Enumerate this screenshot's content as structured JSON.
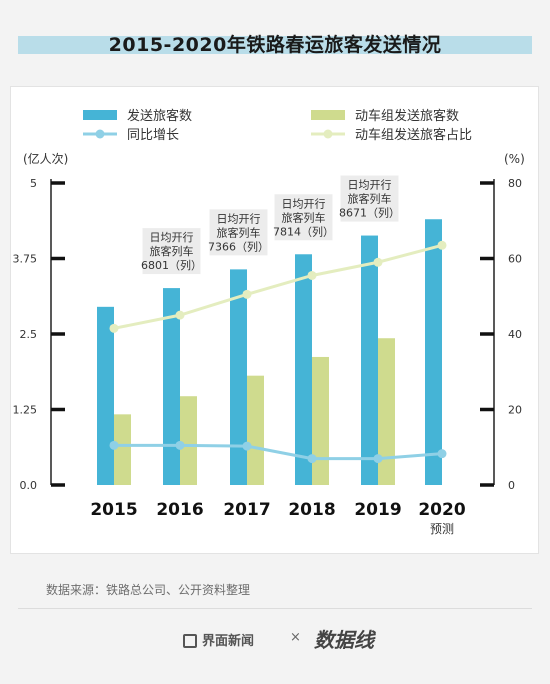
{
  "title": "2015-2020年铁路春运旅客发送情况",
  "source": "数据来源：铁路总公司、公开资料整理",
  "footer": {
    "brand": "界面新闻",
    "separator": "×",
    "partner": "数据线"
  },
  "colors": {
    "bar_total": "#45b4d6",
    "bar_emu": "#cfdb8e",
    "line_growth": "#8fd0e6",
    "line_share": "#e4edbf"
  },
  "chart_data": {
    "type": "bar",
    "title": "2015-2020年铁路春运旅客发送情况",
    "categories": [
      "2015",
      "2016",
      "2017",
      "2018",
      "2019",
      "2020"
    ],
    "category_notes": [
      "",
      "",
      "",
      "",
      "",
      "预测"
    ],
    "y_left": {
      "unit": "(亿人次)",
      "ticks": [
        "5",
        "3.75",
        "2.5",
        "1.25",
        "0.0"
      ],
      "range": [
        0,
        5
      ]
    },
    "y_right": {
      "unit": "(%)",
      "ticks": [
        "80",
        "60",
        "40",
        "20",
        "0"
      ],
      "range": [
        0,
        80
      ]
    },
    "legend": [
      "发送旅客数",
      "动车组发送旅客数",
      "同比增长",
      "动车组发送旅客占比"
    ],
    "series": [
      {
        "name": "发送旅客数",
        "type": "bar",
        "axis": "left",
        "values": [
          2.95,
          3.26,
          3.57,
          3.82,
          4.13,
          4.4
        ]
      },
      {
        "name": "动车组发送旅客数",
        "type": "bar",
        "axis": "left",
        "values": [
          1.17,
          1.47,
          1.81,
          2.12,
          2.43,
          null
        ]
      },
      {
        "name": "同比增长",
        "type": "line",
        "axis": "right",
        "values": [
          10.5,
          10.5,
          10.3,
          7,
          7,
          8.3
        ]
      },
      {
        "name": "动车组发送旅客占比",
        "type": "line",
        "axis": "right",
        "values": [
          41.5,
          45,
          50.5,
          55.5,
          59,
          63.5
        ]
      }
    ],
    "annotations": [
      {
        "category": "2016",
        "lines": [
          "日均开行",
          "旅客列车",
          "6801（列）"
        ]
      },
      {
        "category": "2017",
        "lines": [
          "日均开行",
          "旅客列车",
          "7366（列）"
        ]
      },
      {
        "category": "2018",
        "lines": [
          "日均开行",
          "旅客列车",
          "7814（列）"
        ]
      },
      {
        "category": "2019",
        "lines": [
          "日均开行",
          "旅客列车",
          "8671（列）"
        ]
      }
    ],
    "grid": false,
    "legend_position": "top"
  }
}
